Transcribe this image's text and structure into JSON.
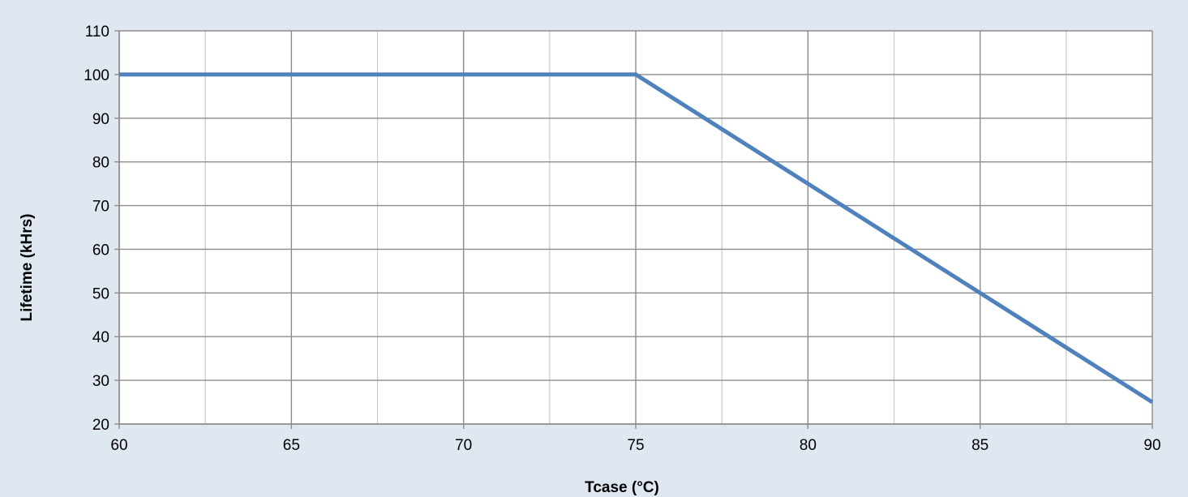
{
  "chart_data": {
    "type": "line",
    "title": "",
    "xlabel": "Tcase (°C)",
    "ylabel": "Lifetime (kHrs)",
    "xlim": [
      60,
      90
    ],
    "ylim": [
      20,
      110
    ],
    "x_ticks": [
      60,
      65,
      70,
      75,
      80,
      85,
      90
    ],
    "y_ticks": [
      20,
      30,
      40,
      50,
      60,
      70,
      80,
      90,
      100,
      110
    ],
    "grid": true,
    "series": [
      {
        "x": [
          60,
          75,
          90
        ],
        "y": [
          100,
          100,
          25
        ]
      }
    ]
  },
  "colors": {
    "frame_background": "#dfe7f1",
    "plot_background": "#ffffff",
    "line": "#4f81bd",
    "major_grid": "#8c8c8c",
    "minor_grid": "#c8c8c8"
  }
}
